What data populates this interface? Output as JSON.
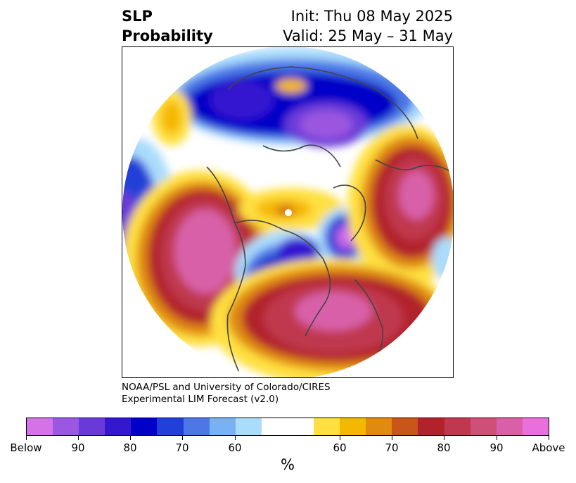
{
  "header": {
    "title_line1": "SLP",
    "title_line2": "Probability",
    "init": "Init: Thu 08 May 2025",
    "valid": "Valid: 25 May – 31 May"
  },
  "credit": {
    "line1": "NOAA/PSL and University of Colorado/CIRES",
    "line2": "Experimental LIM Forecast (v2.0)"
  },
  "colorbar": {
    "unit": "%",
    "colors": [
      "#d672e8",
      "#9b57e0",
      "#6a3ad8",
      "#3418d0",
      "#0000c8",
      "#2040d8",
      "#4c78e6",
      "#78b2f2",
      "#aadcfc",
      "#ffffff",
      "#ffe040",
      "#f5b800",
      "#e08a10",
      "#c8561a",
      "#b2222a",
      "#c0384e",
      "#cc5078",
      "#d860a8",
      "#e870dc"
    ],
    "tick_labels": [
      "Below",
      "90",
      "80",
      "70",
      "60",
      "60",
      "70",
      "80",
      "90",
      "Above"
    ]
  }
}
